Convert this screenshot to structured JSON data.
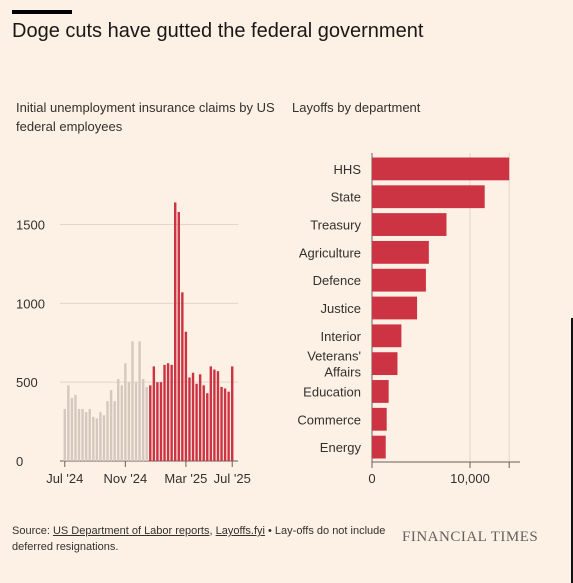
{
  "header": {
    "title": "Doge cuts have gutted the federal government"
  },
  "chart_data": [
    {
      "type": "bar",
      "title": "Initial unemployment insurance claims by US federal employees",
      "x_tick_labels": [
        "Jul '24",
        "Nov '24",
        "Mar '25",
        "Jul '25"
      ],
      "y_ticks": [
        0,
        500,
        1000,
        1500
      ],
      "y_tick_labels": [
        "0",
        "500",
        "1000",
        "1500"
      ],
      "ylim": [
        0,
        1700
      ],
      "grid": true,
      "colors": {
        "before": "#d5c9bf",
        "after": "#cc3343"
      },
      "series": [
        {
          "values": [
            330,
            480,
            400,
            420,
            330,
            330,
            310,
            330,
            280,
            270,
            310,
            290,
            380,
            450,
            380,
            520,
            480,
            620,
            500,
            760,
            500,
            760,
            520,
            470
          ],
          "color": "#d5c9bf"
        },
        {
          "values": [
            480,
            600,
            500,
            500,
            610,
            620,
            610,
            1640,
            1580,
            1070,
            820,
            530,
            560,
            490,
            550,
            480,
            430,
            600,
            580,
            570,
            470,
            460,
            440,
            600
          ],
          "color": "#cc3343"
        }
      ]
    },
    {
      "type": "bar",
      "orientation": "horizontal",
      "title": "Layoffs by department",
      "categories": [
        "HHS",
        "State",
        "Treasury",
        "Agriculture",
        "Defence",
        "Justice",
        "Interior",
        "Veterans' Affairs",
        "Education",
        "Commerce",
        "Energy"
      ],
      "values": [
        14000,
        11500,
        7600,
        5800,
        5500,
        4600,
        3000,
        2600,
        1700,
        1500,
        1400
      ],
      "x_ticks": [
        0,
        10000
      ],
      "x_tick_labels": [
        "0",
        "10,000"
      ],
      "xlim": [
        0,
        15000
      ],
      "grid": true,
      "colors": {
        "bar": "#cc3343"
      }
    }
  ],
  "footer": {
    "source_prefix": "Source: ",
    "source_link_1": "US Department of Labor reports",
    "source_sep": ", ",
    "source_link_2": "Layoffs.fyi",
    "source_note": " • Lay-offs do not include deferred resignations.",
    "brand": "FINANCIAL TIMES"
  }
}
